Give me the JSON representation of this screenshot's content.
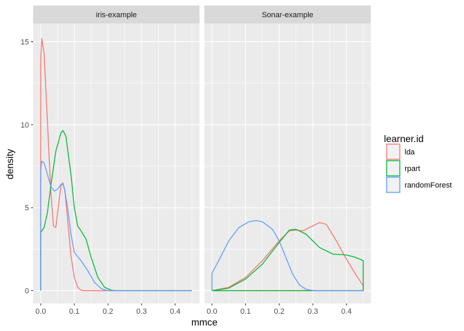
{
  "chart_data": {
    "type": "line",
    "subtype": "density",
    "xlabel": "mmce",
    "ylabel": "density",
    "xlim": [
      -0.0225,
      0.4725
    ],
    "ylim": [
      -0.77,
      16.1
    ],
    "x_ticks": [
      "0.0",
      "0.1",
      "0.2",
      "0.3",
      "0.4"
    ],
    "y_ticks": [
      "0",
      "5",
      "10",
      "15"
    ],
    "grid": true,
    "facets": [
      "iris-example",
      "Sonar-example"
    ],
    "legend": {
      "title": "learner.id",
      "position": "right",
      "entries": [
        "lda",
        "rpart",
        "randomForest"
      ]
    },
    "series": [
      {
        "name": "lda",
        "color": "#F8766D",
        "facets": {
          "iris-example": [
            [
              0,
              0
            ],
            [
              0,
              14
            ],
            [
              0.003,
              15.2
            ],
            [
              0.01,
              14.3
            ],
            [
              0.02,
              10.2
            ],
            [
              0.03,
              6.0
            ],
            [
              0.038,
              3.9
            ],
            [
              0.045,
              3.8
            ],
            [
              0.052,
              5.0
            ],
            [
              0.06,
              6.3
            ],
            [
              0.066,
              6.5
            ],
            [
              0.072,
              6.0
            ],
            [
              0.08,
              4.3
            ],
            [
              0.09,
              2.1
            ],
            [
              0.1,
              0.8
            ],
            [
              0.11,
              0.2
            ],
            [
              0.12,
              0.03
            ],
            [
              0.13,
              0.0
            ],
            [
              0.45,
              0.0
            ],
            [
              0.45,
              0
            ]
          ],
          "Sonar-example": [
            [
              0.0,
              0.0
            ],
            [
              0.05,
              0.2
            ],
            [
              0.1,
              0.8
            ],
            [
              0.15,
              1.8
            ],
            [
              0.2,
              3.0
            ],
            [
              0.23,
              3.6
            ],
            [
              0.25,
              3.65
            ],
            [
              0.27,
              3.6
            ],
            [
              0.3,
              3.9
            ],
            [
              0.32,
              4.1
            ],
            [
              0.34,
              4.0
            ],
            [
              0.37,
              3.0
            ],
            [
              0.4,
              1.9
            ],
            [
              0.43,
              0.9
            ],
            [
              0.45,
              0.3
            ],
            [
              0.45,
              0
            ],
            [
              0.0,
              0
            ]
          ]
        }
      },
      {
        "name": "rpart",
        "color": "#00BA38",
        "facets": {
          "iris-example": [
            [
              0,
              0
            ],
            [
              0,
              3.5
            ],
            [
              0.01,
              3.8
            ],
            [
              0.02,
              4.7
            ],
            [
              0.03,
              6.3
            ],
            [
              0.045,
              8.4
            ],
            [
              0.06,
              9.5
            ],
            [
              0.066,
              9.65
            ],
            [
              0.075,
              9.3
            ],
            [
              0.09,
              7.0
            ],
            [
              0.1,
              5.0
            ],
            [
              0.11,
              3.9
            ],
            [
              0.12,
              3.6
            ],
            [
              0.135,
              3.1
            ],
            [
              0.15,
              2.0
            ],
            [
              0.17,
              0.8
            ],
            [
              0.19,
              0.2
            ],
            [
              0.21,
              0.03
            ],
            [
              0.22,
              0.0
            ],
            [
              0.45,
              0.0
            ],
            [
              0.45,
              0
            ]
          ],
          "Sonar-example": [
            [
              0.0,
              0.0
            ],
            [
              0.05,
              0.15
            ],
            [
              0.1,
              0.7
            ],
            [
              0.15,
              1.6
            ],
            [
              0.2,
              2.9
            ],
            [
              0.23,
              3.65
            ],
            [
              0.25,
              3.7
            ],
            [
              0.28,
              3.4
            ],
            [
              0.32,
              2.6
            ],
            [
              0.36,
              2.2
            ],
            [
              0.4,
              2.15
            ],
            [
              0.42,
              2.05
            ],
            [
              0.44,
              1.9
            ],
            [
              0.45,
              1.8
            ],
            [
              0.45,
              0
            ],
            [
              0.0,
              0
            ]
          ]
        }
      },
      {
        "name": "randomForest",
        "color": "#619CFF",
        "facets": {
          "iris-example": [
            [
              0,
              0
            ],
            [
              0,
              7.3
            ],
            [
              0.003,
              7.8
            ],
            [
              0.01,
              7.7
            ],
            [
              0.02,
              7.0
            ],
            [
              0.03,
              6.3
            ],
            [
              0.04,
              6.0
            ],
            [
              0.05,
              6.1
            ],
            [
              0.06,
              6.4
            ],
            [
              0.065,
              6.45
            ],
            [
              0.07,
              6.2
            ],
            [
              0.08,
              5.0
            ],
            [
              0.09,
              3.4
            ],
            [
              0.1,
              2.3
            ],
            [
              0.12,
              1.8
            ],
            [
              0.14,
              1.2
            ],
            [
              0.16,
              0.5
            ],
            [
              0.18,
              0.12
            ],
            [
              0.2,
              0.0
            ],
            [
              0.45,
              0.0
            ],
            [
              0.45,
              0
            ]
          ],
          "Sonar-example": [
            [
              0,
              0
            ],
            [
              0,
              1.05
            ],
            [
              0.02,
              1.8
            ],
            [
              0.05,
              3.0
            ],
            [
              0.08,
              3.8
            ],
            [
              0.11,
              4.15
            ],
            [
              0.13,
              4.22
            ],
            [
              0.15,
              4.15
            ],
            [
              0.18,
              3.7
            ],
            [
              0.2,
              3.0
            ],
            [
              0.22,
              2.0
            ],
            [
              0.24,
              1.0
            ],
            [
              0.26,
              0.35
            ],
            [
              0.28,
              0.08
            ],
            [
              0.3,
              0.01
            ],
            [
              0.31,
              0.0
            ],
            [
              0.45,
              0.0
            ],
            [
              0.45,
              0
            ]
          ]
        }
      }
    ]
  }
}
